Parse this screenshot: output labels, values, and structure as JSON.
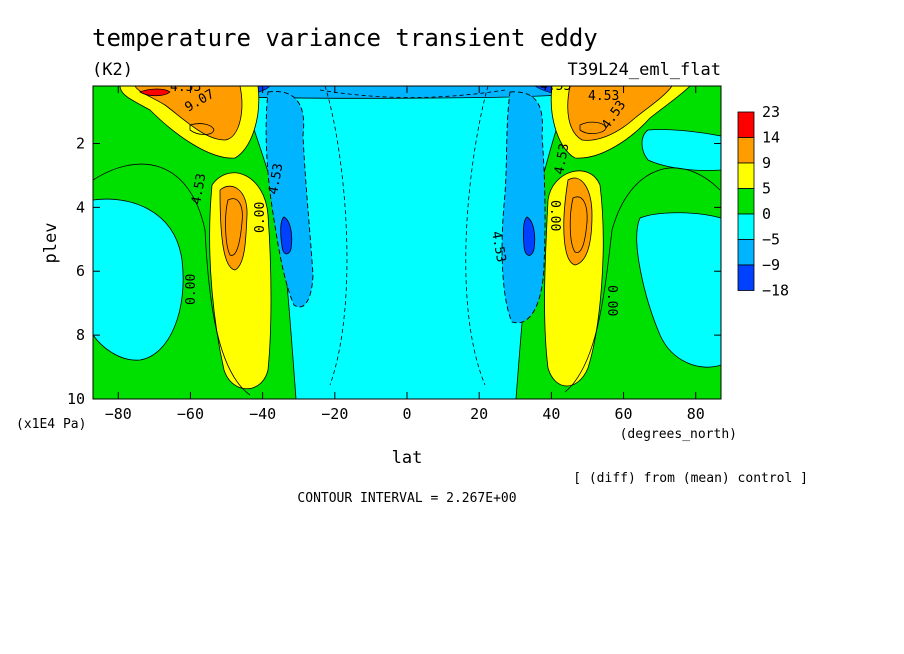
{
  "chart_data": {
    "type": "heatmap",
    "title": "temperature variance transient eddy",
    "units": "(K2)",
    "run_label": "T39L24_eml_flat",
    "xlabel": "lat",
    "xunits": "(degrees_north)",
    "ylabel": "plev",
    "yunits": "(x1E4 Pa)",
    "xlim": [
      -87,
      87
    ],
    "ylim": [
      10,
      0.2
    ],
    "x_ticks": [
      -80,
      -60,
      -40,
      -20,
      0,
      20,
      40,
      60,
      80
    ],
    "y_ticks": [
      2,
      4,
      6,
      8,
      10
    ],
    "grid": false,
    "colorbar": {
      "placement": "right",
      "levels": [
        "23",
        "14",
        "9",
        "5",
        "0",
        "-5",
        "-9",
        "-18"
      ],
      "colors": [
        "#ff0000",
        "#ff9d00",
        "#ffff00",
        "#00e000",
        "#00ffff",
        "#00b4ff",
        "#0040ff"
      ]
    },
    "contour_labels": [
      "9.07",
      "4.53",
      "4.53",
      "0.00",
      "0.00",
      "4.53",
      "4.53",
      "4.53",
      "0.00",
      "4.53",
      "0.00",
      "4.53",
      "4.53"
    ],
    "note": "[ (diff) from (mean) control ]",
    "contour_interval": "CONTOUR INTERVAL = 2.267E+00"
  }
}
